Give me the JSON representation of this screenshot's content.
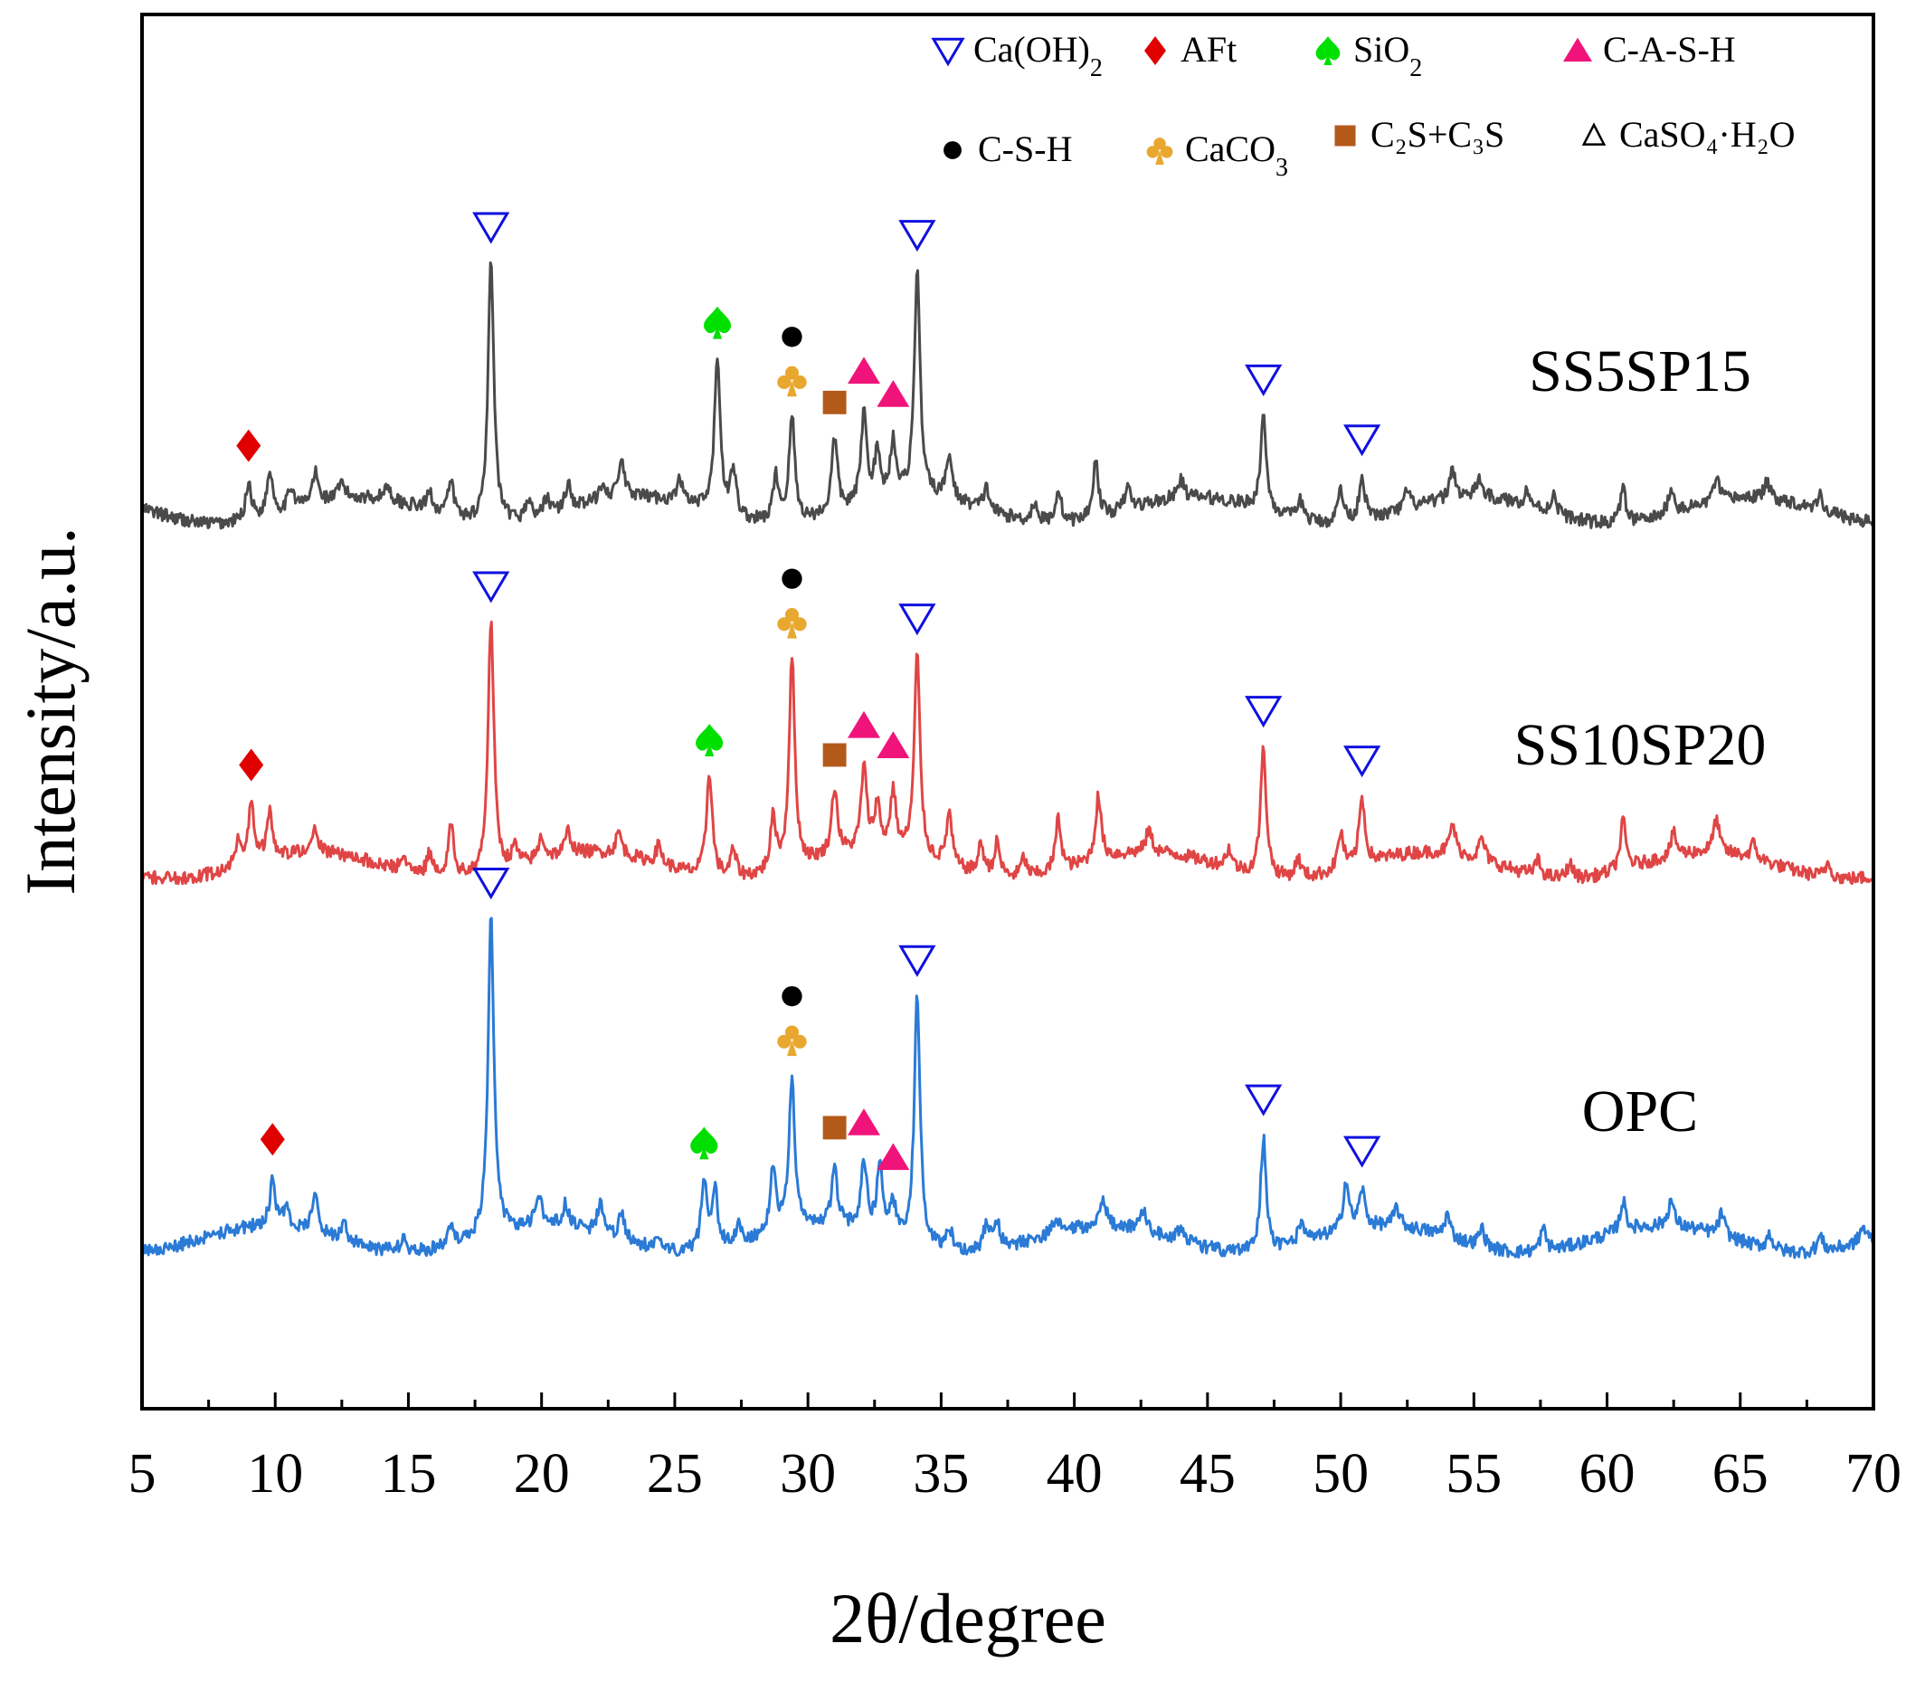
{
  "chart_data": {
    "type": "line",
    "xlabel": "2θ/degree",
    "ylabel": "Intensity/a.u.",
    "xlim": [
      5,
      70
    ],
    "xticks": [
      5,
      10,
      15,
      20,
      25,
      30,
      35,
      40,
      45,
      50,
      55,
      60,
      65,
      70
    ],
    "xtick_labels": [
      "5",
      "10",
      "15",
      "20",
      "25",
      "30",
      "35",
      "40",
      "45",
      "50",
      "55",
      "60",
      "65",
      "70"
    ],
    "yticks_shown": false,
    "legend": {
      "placement": "top-right",
      "entries": [
        {
          "key": "caoh2",
          "symbol": "triangle-down-open",
          "color": "#1010e0",
          "text": "Ca(OH)",
          "sub": "2"
        },
        {
          "key": "aft",
          "symbol": "diamond",
          "color": "#e00000",
          "text": "AFt",
          "sub": ""
        },
        {
          "key": "sio2",
          "symbol": "spade",
          "color": "#00e000",
          "text": "SiO",
          "sub": "2"
        },
        {
          "key": "cash",
          "symbol": "triangle-up",
          "color": "#f0147a",
          "text": "C-A-S-H",
          "sub": ""
        },
        {
          "key": "csh",
          "symbol": "circle",
          "color": "#000000",
          "text": "C-S-H",
          "sub": ""
        },
        {
          "key": "caco3",
          "symbol": "club",
          "color": "#e8a830",
          "text": "CaCO",
          "sub": "3"
        },
        {
          "key": "c2s",
          "symbol": "square",
          "color": "#b35a1a",
          "text": "C₂S+C₃S",
          "sub": ""
        },
        {
          "key": "caso4",
          "symbol": "delta",
          "color": "#000000",
          "text": "CaSO₄·H₂O",
          "sub": ""
        }
      ]
    },
    "series": [
      {
        "name": "SS5SP15",
        "color": "#4a4a4a",
        "offset": 1.95,
        "peaks": [
          [
            9.0,
            0.1
          ],
          [
            9.8,
            0.12
          ],
          [
            10.6,
            0.06
          ],
          [
            11.5,
            0.08
          ],
          [
            12.5,
            0.04
          ],
          [
            14.2,
            0.04
          ],
          [
            15.8,
            0.05
          ],
          [
            16.6,
            0.09
          ],
          [
            18.1,
            0.7
          ],
          [
            19.5,
            0.05
          ],
          [
            20.2,
            0.05
          ],
          [
            21.0,
            0.07
          ],
          [
            22.3,
            0.05
          ],
          [
            23.0,
            0.1
          ],
          [
            25.2,
            0.06
          ],
          [
            26.6,
            0.42
          ],
          [
            27.2,
            0.12
          ],
          [
            28.8,
            0.12
          ],
          [
            29.4,
            0.28
          ],
          [
            31.0,
            0.2
          ],
          [
            32.1,
            0.24
          ],
          [
            32.6,
            0.12
          ],
          [
            33.2,
            0.15
          ],
          [
            34.1,
            0.6
          ],
          [
            35.3,
            0.12
          ],
          [
            36.7,
            0.06
          ],
          [
            38.5,
            0.05
          ],
          [
            39.4,
            0.09
          ],
          [
            40.8,
            0.15
          ],
          [
            42.0,
            0.06
          ],
          [
            44.0,
            0.05
          ],
          [
            47.1,
            0.25
          ],
          [
            48.5,
            0.05
          ],
          [
            50.0,
            0.09
          ],
          [
            50.8,
            0.12
          ],
          [
            52.5,
            0.05
          ],
          [
            54.2,
            0.08
          ],
          [
            55.2,
            0.05
          ],
          [
            57.0,
            0.04
          ],
          [
            58.0,
            0.05
          ],
          [
            60.6,
            0.09
          ],
          [
            62.4,
            0.07
          ],
          [
            64.1,
            0.06
          ],
          [
            66.0,
            0.04
          ],
          [
            68.0,
            0.04
          ]
        ]
      },
      {
        "name": "SS10SP20",
        "color": "#e04545",
        "offset": 1.0,
        "peaks": [
          [
            8.6,
            0.06
          ],
          [
            9.1,
            0.16
          ],
          [
            9.8,
            0.12
          ],
          [
            11.5,
            0.06
          ],
          [
            14.8,
            0.04
          ],
          [
            15.8,
            0.06
          ],
          [
            16.6,
            0.14
          ],
          [
            18.1,
            0.68
          ],
          [
            19.0,
            0.05
          ],
          [
            20.0,
            0.06
          ],
          [
            21.0,
            0.06
          ],
          [
            22.9,
            0.06
          ],
          [
            24.4,
            0.05
          ],
          [
            26.3,
            0.28
          ],
          [
            27.2,
            0.07
          ],
          [
            28.7,
            0.14
          ],
          [
            29.4,
            0.56
          ],
          [
            31.0,
            0.18
          ],
          [
            32.1,
            0.22
          ],
          [
            32.6,
            0.12
          ],
          [
            33.2,
            0.16
          ],
          [
            34.1,
            0.54
          ],
          [
            35.3,
            0.14
          ],
          [
            36.5,
            0.08
          ],
          [
            37.1,
            0.09
          ],
          [
            38.1,
            0.05
          ],
          [
            39.4,
            0.14
          ],
          [
            40.9,
            0.17
          ],
          [
            42.8,
            0.06
          ],
          [
            45.8,
            0.05
          ],
          [
            47.1,
            0.34
          ],
          [
            48.4,
            0.05
          ],
          [
            50.0,
            0.1
          ],
          [
            50.8,
            0.18
          ],
          [
            54.2,
            0.08
          ],
          [
            55.3,
            0.06
          ],
          [
            57.4,
            0.04
          ],
          [
            58.6,
            0.04
          ],
          [
            60.6,
            0.13
          ],
          [
            62.5,
            0.06
          ],
          [
            64.1,
            0.09
          ],
          [
            65.5,
            0.04
          ],
          [
            68.3,
            0.04
          ]
        ]
      },
      {
        "name": "OPC",
        "color": "#2a7ad6",
        "offset": 0.0,
        "peaks": [
          [
            9.9,
            0.12
          ],
          [
            10.4,
            0.05
          ],
          [
            11.5,
            0.1
          ],
          [
            12.6,
            0.04
          ],
          [
            14.8,
            0.04
          ],
          [
            16.6,
            0.06
          ],
          [
            18.1,
            0.86
          ],
          [
            19.9,
            0.08
          ],
          [
            20.9,
            0.06
          ],
          [
            22.2,
            0.08
          ],
          [
            23.0,
            0.07
          ],
          [
            24.4,
            0.04
          ],
          [
            26.1,
            0.18
          ],
          [
            26.5,
            0.16
          ],
          [
            27.4,
            0.05
          ],
          [
            28.7,
            0.18
          ],
          [
            29.4,
            0.4
          ],
          [
            31.0,
            0.15
          ],
          [
            32.1,
            0.18
          ],
          [
            32.7,
            0.18
          ],
          [
            33.2,
            0.08
          ],
          [
            34.1,
            0.66
          ],
          [
            35.3,
            0.06
          ],
          [
            36.7,
            0.07
          ],
          [
            37.1,
            0.07
          ],
          [
            39.3,
            0.04
          ],
          [
            41.1,
            0.07
          ],
          [
            42.6,
            0.06
          ],
          [
            44.0,
            0.04
          ],
          [
            47.1,
            0.3
          ],
          [
            48.5,
            0.05
          ],
          [
            50.2,
            0.13
          ],
          [
            50.8,
            0.1
          ],
          [
            52.1,
            0.05
          ],
          [
            54.0,
            0.06
          ],
          [
            55.3,
            0.05
          ],
          [
            57.6,
            0.06
          ],
          [
            60.6,
            0.08
          ],
          [
            62.4,
            0.07
          ],
          [
            64.3,
            0.06
          ],
          [
            66.1,
            0.04
          ],
          [
            68.0,
            0.04
          ],
          [
            69.6,
            0.04
          ]
        ]
      }
    ],
    "annotations": [
      {
        "sample": "SS5SP15",
        "phase": "aft",
        "x": 9.0
      },
      {
        "sample": "SS5SP15",
        "phase": "caoh2",
        "x": 18.1
      },
      {
        "sample": "SS5SP15",
        "phase": "sio2",
        "x": 26.6
      },
      {
        "sample": "SS5SP15",
        "phase": "caco3",
        "x": 29.4
      },
      {
        "sample": "SS5SP15",
        "phase": "csh",
        "x": 29.4
      },
      {
        "sample": "SS5SP15",
        "phase": "c2s",
        "x": 31.0
      },
      {
        "sample": "SS5SP15",
        "phase": "cash",
        "x": 32.1
      },
      {
        "sample": "SS5SP15",
        "phase": "cash",
        "x": 33.2
      },
      {
        "sample": "SS5SP15",
        "phase": "caoh2",
        "x": 34.1
      },
      {
        "sample": "SS5SP15",
        "phase": "caoh2",
        "x": 47.1
      },
      {
        "sample": "SS5SP15",
        "phase": "caoh2",
        "x": 50.8
      },
      {
        "sample": "SS10SP20",
        "phase": "aft",
        "x": 9.1
      },
      {
        "sample": "SS10SP20",
        "phase": "caoh2",
        "x": 18.1
      },
      {
        "sample": "SS10SP20",
        "phase": "sio2",
        "x": 26.3
      },
      {
        "sample": "SS10SP20",
        "phase": "caco3",
        "x": 29.4
      },
      {
        "sample": "SS10SP20",
        "phase": "csh",
        "x": 29.4
      },
      {
        "sample": "SS10SP20",
        "phase": "c2s",
        "x": 31.0
      },
      {
        "sample": "SS10SP20",
        "phase": "cash",
        "x": 32.1
      },
      {
        "sample": "SS10SP20",
        "phase": "cash",
        "x": 33.2
      },
      {
        "sample": "SS10SP20",
        "phase": "caoh2",
        "x": 34.1
      },
      {
        "sample": "SS10SP20",
        "phase": "caoh2",
        "x": 47.1
      },
      {
        "sample": "SS10SP20",
        "phase": "caoh2",
        "x": 50.8
      },
      {
        "sample": "OPC",
        "phase": "aft",
        "x": 9.9
      },
      {
        "sample": "OPC",
        "phase": "caoh2",
        "x": 18.1
      },
      {
        "sample": "OPC",
        "phase": "sio2",
        "x": 26.1
      },
      {
        "sample": "OPC",
        "phase": "caco3",
        "x": 29.4
      },
      {
        "sample": "OPC",
        "phase": "csh",
        "x": 29.4
      },
      {
        "sample": "OPC",
        "phase": "c2s",
        "x": 31.0
      },
      {
        "sample": "OPC",
        "phase": "cash",
        "x": 32.1
      },
      {
        "sample": "OPC",
        "phase": "cash",
        "x": 33.2
      },
      {
        "sample": "OPC",
        "phase": "caoh2",
        "x": 34.1
      },
      {
        "sample": "OPC",
        "phase": "caoh2",
        "x": 47.1
      },
      {
        "sample": "OPC",
        "phase": "caoh2",
        "x": 50.8
      }
    ]
  }
}
